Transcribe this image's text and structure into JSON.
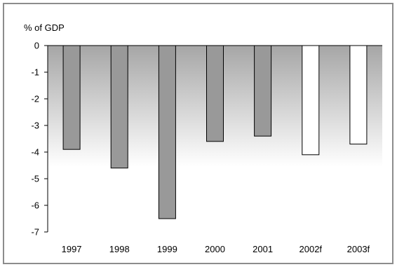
{
  "chart_data": {
    "type": "bar",
    "ylabel": "% of GDP",
    "categories": [
      "1997",
      "1998",
      "1999",
      "2000",
      "2001",
      "2002f",
      "2003f"
    ],
    "values": [
      -3.9,
      -4.6,
      -6.5,
      -3.6,
      -3.4,
      -4.1,
      -3.7
    ],
    "forecast": [
      false,
      false,
      false,
      false,
      false,
      true,
      true
    ],
    "ylim": [
      -7,
      0
    ],
    "yticks": [
      0,
      -1,
      -2,
      -3,
      -4,
      -5,
      -6,
      -7
    ],
    "grid": false,
    "colors": {
      "actual": "#999999",
      "forecast": "#ffffff",
      "bar_stroke": "#000000",
      "plot_gradient_dark": "#a6a6a6",
      "plot_gradient_light": "#ffffff"
    }
  }
}
